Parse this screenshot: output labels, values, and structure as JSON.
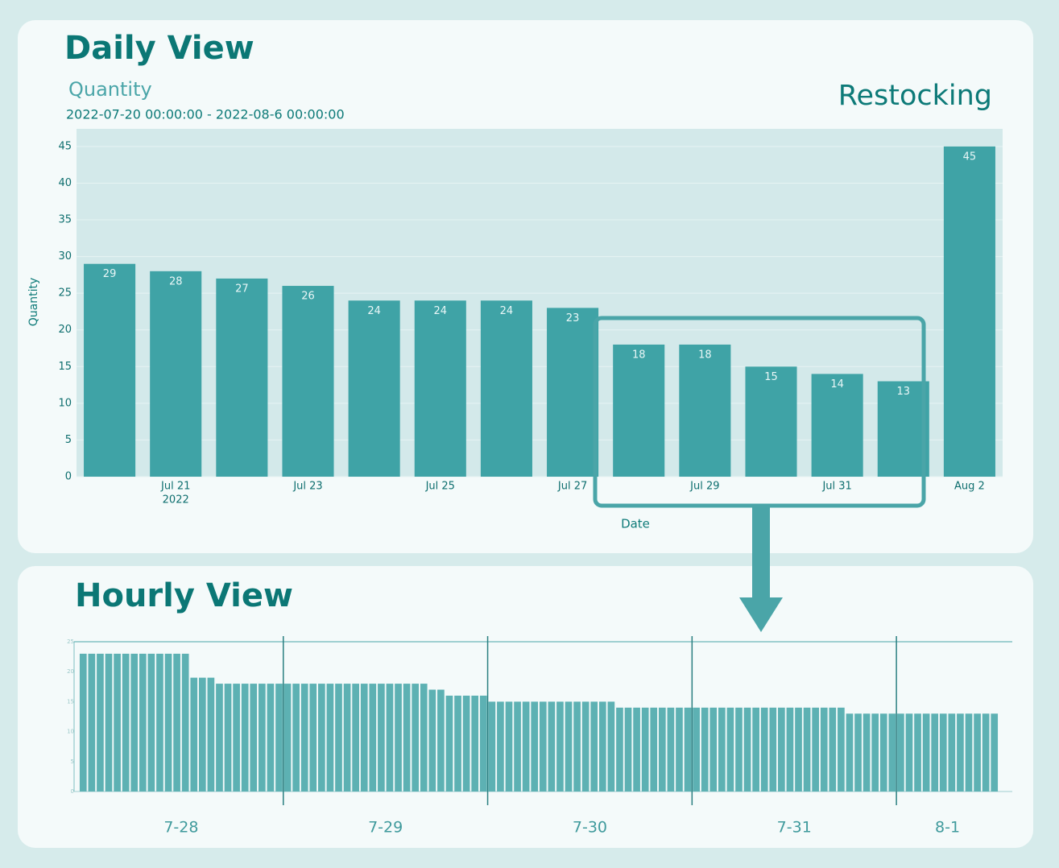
{
  "chart_data": [
    {
      "type": "bar",
      "title": "Daily View",
      "subtitle": "Quantity",
      "date_range": "2022-07-20 00:00:00 - 2022-08-6 00:00:00",
      "annotation": "Restocking",
      "y_label": "Quantity",
      "x_label": "Date",
      "categories": [
        null,
        "Jul 21",
        null,
        "Jul 23",
        null,
        "Jul 25",
        null,
        "Jul 27",
        null,
        "Jul 29",
        null,
        "Jul 31",
        null,
        "Aug 2"
      ],
      "year_label": "2022",
      "values": [
        29,
        28,
        27,
        26,
        24,
        24,
        24,
        23,
        18,
        18,
        15,
        14,
        13,
        45
      ],
      "color": "#3fa3a6",
      "ylim": [
        0,
        47.4
      ],
      "yticks": [
        0,
        5,
        10,
        15,
        20,
        25,
        30,
        35,
        40,
        45
      ],
      "grid": true
    },
    {
      "type": "bar",
      "title": "Hourly View",
      "groups": [
        {
          "name": "7-28",
          "size": 24
        },
        {
          "name": "7-29",
          "size": 24
        },
        {
          "name": "7-30",
          "size": 24
        },
        {
          "name": "7-31",
          "size": 24
        },
        {
          "name": "8-1",
          "size": 12
        }
      ],
      "values": [
        23,
        23,
        23,
        23,
        23,
        23,
        23,
        23,
        23,
        23,
        23,
        23,
        23,
        19,
        19,
        19,
        18,
        18,
        18,
        18,
        18,
        18,
        18,
        18,
        18,
        18,
        18,
        18,
        18,
        18,
        18,
        18,
        18,
        18,
        18,
        18,
        18,
        18,
        18,
        18,
        18,
        17,
        17,
        16,
        16,
        16,
        16,
        16,
        15,
        15,
        15,
        15,
        15,
        15,
        15,
        15,
        15,
        15,
        15,
        15,
        15,
        15,
        15,
        14,
        14,
        14,
        14,
        14,
        14,
        14,
        14,
        14,
        14,
        14,
        14,
        14,
        14,
        14,
        14,
        14,
        14,
        14,
        14,
        14,
        14,
        14,
        14,
        14,
        14,
        14,
        13,
        13,
        13,
        13,
        13,
        13,
        13,
        13,
        13,
        13,
        13,
        13,
        13,
        13,
        13,
        13,
        13,
        13
      ],
      "color": "#5db1b3",
      "ylim": [
        0,
        25
      ],
      "yticks": [
        0,
        5,
        10,
        15,
        20,
        25
      ]
    }
  ]
}
